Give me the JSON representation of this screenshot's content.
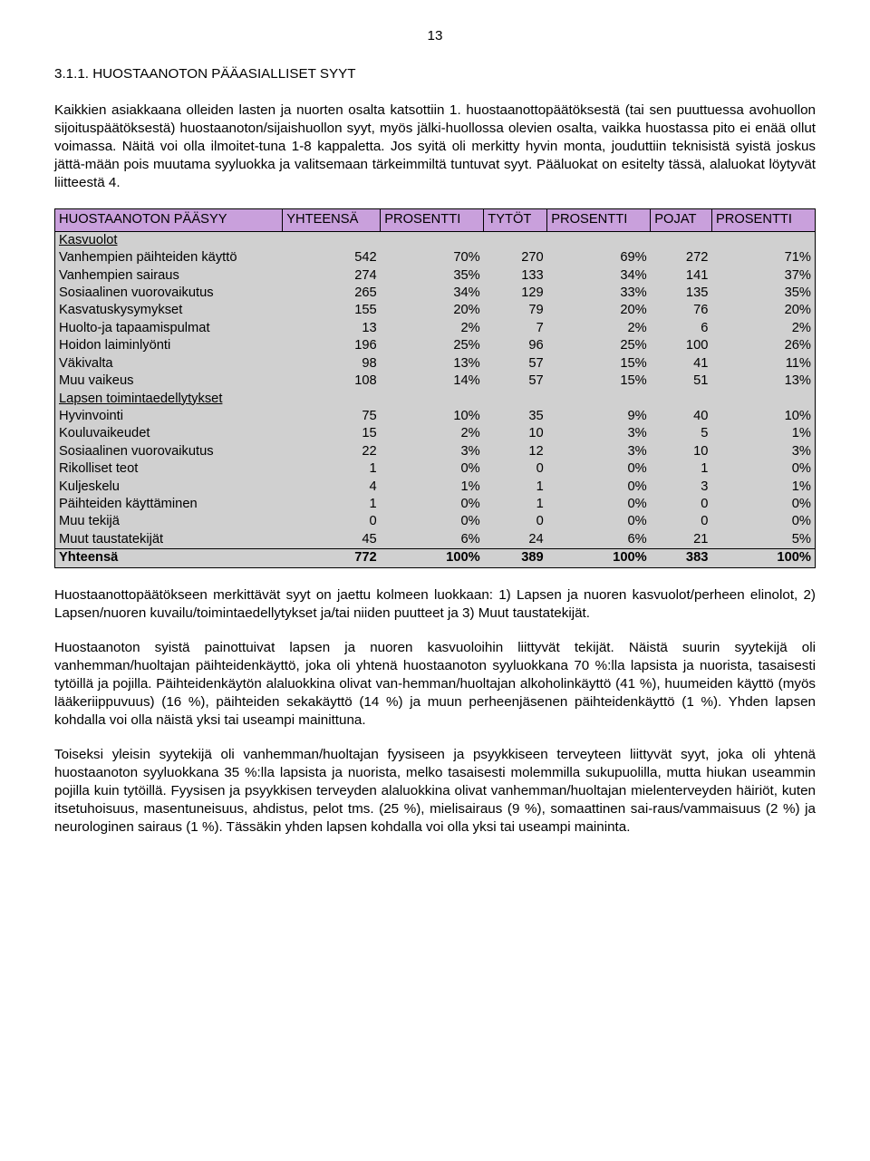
{
  "page_number": "13",
  "heading": "3.1.1. HUOSTAANOTON PÄÄASIALLISET SYYT",
  "para1": "Kaikkien asiakkaana olleiden lasten ja nuorten osalta katsottiin 1. huostaanottopäätöksestä (tai sen puuttuessa avohuollon sijoituspäätöksestä) huostaanoton/sijaishuollon syyt, myös jälki-huollossa olevien osalta, vaikka huostassa pito ei enää ollut voimassa. Näitä voi olla ilmoitet-tuna 1-8 kappaletta. Jos syitä oli merkitty hyvin monta, jouduttiin teknisistä syistä joskus jättä-mään pois muutama syyluokka ja valitsemaan tärkeimmiltä tuntuvat syyt. Pääluokat on esitelty tässä, alaluokat löytyvät liitteestä 4.",
  "table": {
    "headers": [
      "HUOSTAANOTON PÄÄSYY",
      "YHTEENSÄ",
      "PROSENTTI",
      "TYTÖT",
      "PROSENTTI",
      "POJAT",
      "PROSENTTI"
    ],
    "sections": [
      {
        "title": "Kasvuolot",
        "rows": [
          {
            "label": "Vanhempien päihteiden käyttö",
            "vals": [
              "542",
              "70%",
              "270",
              "69%",
              "272",
              "71%"
            ]
          },
          {
            "label": "Vanhempien sairaus",
            "vals": [
              "274",
              "35%",
              "133",
              "34%",
              "141",
              "37%"
            ]
          },
          {
            "label": "Sosiaalinen vuorovaikutus",
            "vals": [
              "265",
              "34%",
              "129",
              "33%",
              "135",
              "35%"
            ]
          },
          {
            "label": "Kasvatuskysymykset",
            "vals": [
              "155",
              "20%",
              "79",
              "20%",
              "76",
              "20%"
            ]
          },
          {
            "label": "Huolto-ja tapaamispulmat",
            "vals": [
              "13",
              "2%",
              "7",
              "2%",
              "6",
              "2%"
            ]
          },
          {
            "label": "Hoidon laiminlyönti",
            "vals": [
              "196",
              "25%",
              "96",
              "25%",
              "100",
              "26%"
            ]
          },
          {
            "label": "Väkivalta",
            "vals": [
              "98",
              "13%",
              "57",
              "15%",
              "41",
              "11%"
            ]
          },
          {
            "label": "Muu vaikeus",
            "vals": [
              "108",
              "14%",
              "57",
              "15%",
              "51",
              "13%"
            ]
          }
        ]
      },
      {
        "title": "Lapsen toimintaedellytykset",
        "rows": [
          {
            "label": "Hyvinvointi",
            "vals": [
              "75",
              "10%",
              "35",
              "9%",
              "40",
              "10%"
            ]
          },
          {
            "label": "Kouluvaikeudet",
            "vals": [
              "15",
              "2%",
              "10",
              "3%",
              "5",
              "1%"
            ]
          },
          {
            "label": "Sosiaalinen vuorovaikutus",
            "vals": [
              "22",
              "3%",
              "12",
              "3%",
              "10",
              "3%"
            ]
          },
          {
            "label": "Rikolliset teot",
            "vals": [
              "1",
              "0%",
              "0",
              "0%",
              "1",
              "0%"
            ]
          },
          {
            "label": "Kuljeskelu",
            "vals": [
              "4",
              "1%",
              "1",
              "0%",
              "3",
              "1%"
            ]
          },
          {
            "label": "Päihteiden käyttäminen",
            "vals": [
              "1",
              "0%",
              "1",
              "0%",
              "0",
              "0%"
            ]
          },
          {
            "label": "Muu tekijä",
            "vals": [
              "0",
              "0%",
              "0",
              "0%",
              "0",
              "0%"
            ]
          },
          {
            "label": "Muut taustatekijät",
            "vals": [
              "45",
              "6%",
              "24",
              "6%",
              "21",
              "5%"
            ]
          }
        ]
      }
    ],
    "total": {
      "label": "Yhteensä",
      "vals": [
        "772",
        "100%",
        "389",
        "100%",
        "383",
        "100%"
      ]
    }
  },
  "para2": "Huostaanottopäätökseen merkittävät syyt on jaettu kolmeen luokkaan: 1) Lapsen ja nuoren kasvuolot/perheen elinolot, 2) Lapsen/nuoren kuvailu/toimintaedellytykset ja/tai niiden puutteet ja 3) Muut taustatekijät.",
  "para3": "Huostaanoton syistä painottuivat lapsen ja nuoren kasvuoloihin liittyvät tekijät. Näistä suurin syytekijä oli vanhemman/huoltajan päihteidenkäyttö, joka oli yhtenä huostaanoton syyluokkana 70 %:lla lapsista ja nuorista, tasaisesti tytöillä ja pojilla. Päihteidenkäytön alaluokkina olivat van-hemman/huoltajan alkoholinkäyttö (41 %), huumeiden käyttö (myös lääkeriippuvuus) (16 %), päihteiden sekakäyttö (14 %) ja muun perheenjäsenen päihteidenkäyttö (1 %). Yhden lapsen kohdalla voi olla näistä yksi tai useampi mainittuna.",
  "para4": "Toiseksi yleisin syytekijä oli vanhemman/huoltajan fyysiseen ja psyykkiseen terveyteen liittyvät syyt, joka oli yhtenä huostaanoton syyluokkana 35 %:lla lapsista ja nuorista, melko tasaisesti molemmilla sukupuolilla, mutta hiukan useammin pojilla kuin tytöillä. Fyysisen ja psyykkisen terveyden alaluokkina olivat vanhemman/huoltajan mielenterveyden häiriöt, kuten itsetuhoisuus, masentuneisuus, ahdistus, pelot tms. (25 %), mielisairaus (9 %), somaattinen sai-raus/vammaisuus (2 %) ja neurologinen sairaus (1 %). Tässäkin yhden lapsen kohdalla voi olla yksi tai useampi maininta."
}
